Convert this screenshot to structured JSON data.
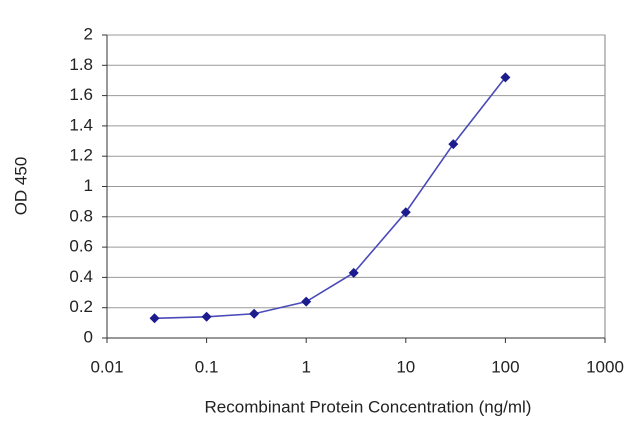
{
  "chart_data": {
    "type": "line",
    "x_label": "Recombinant Protein Concentration (ng/ml)",
    "y_label": "OD 450",
    "x": [
      0.03,
      0.1,
      0.3,
      1,
      3,
      10,
      30,
      100
    ],
    "values": [
      0.13,
      0.14,
      0.16,
      0.24,
      0.43,
      0.83,
      1.28,
      1.72
    ],
    "color": "#1c1c8f",
    "x_log": true,
    "xlim": [
      0.01,
      1000
    ],
    "xticks": [
      0.01,
      0.1,
      1,
      10,
      100,
      1000
    ],
    "ylim": [
      0,
      2
    ],
    "yticks": [
      0,
      0.2,
      0.4,
      0.6,
      0.8,
      1,
      1.2,
      1.4,
      1.6,
      1.8,
      2
    ],
    "grid": true
  }
}
